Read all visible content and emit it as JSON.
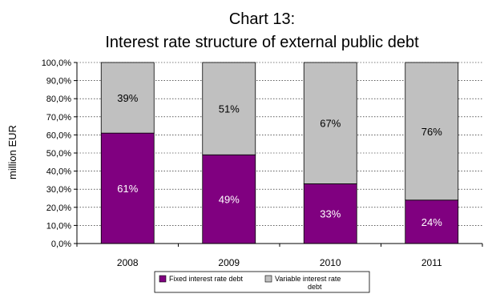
{
  "chart_data": {
    "type": "bar",
    "stacked": true,
    "title_line1": "Chart 13:",
    "title_line2": "Interest rate structure of external public debt",
    "xlabel": "",
    "ylabel": "million EUR",
    "ylim": [
      0,
      100
    ],
    "y_ticks": [
      "0,0%",
      "10,0%",
      "20,0%",
      "30,0%",
      "40,0%",
      "50,0%",
      "60,0%",
      "70,0%",
      "80,0%",
      "90,0%",
      "100,0%"
    ],
    "categories": [
      "2008",
      "2009",
      "2010",
      "2011"
    ],
    "series": [
      {
        "name": "Fixed interest rate debt",
        "values": [
          61,
          49,
          33,
          24
        ],
        "labels": [
          "61%",
          "49%",
          "33%",
          "24%"
        ],
        "color": "#800080",
        "label_color": "#ffffff"
      },
      {
        "name": "Variable interest rate debt",
        "values": [
          39,
          51,
          67,
          76
        ],
        "labels": [
          "39%",
          "51%",
          "67%",
          "76%"
        ],
        "color": "#c0c0c0",
        "label_color": "#000000"
      }
    ],
    "grid": true,
    "legend_position": "bottom"
  }
}
